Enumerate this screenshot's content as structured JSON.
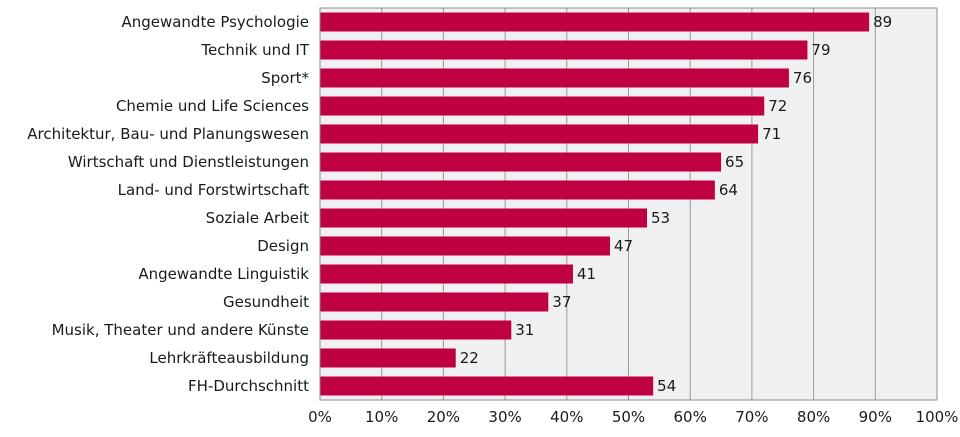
{
  "chart_data": {
    "type": "bar",
    "orientation": "horizontal",
    "categories": [
      "Angewandte Psychologie",
      "Technik und IT",
      "Sport*",
      "Chemie und Life Sciences",
      "Architektur, Bau- und Planungswesen",
      "Wirtschaft und Dienstleistungen",
      "Land- und Forstwirtschaft",
      "Soziale Arbeit",
      "Design",
      "Angewandte Linguistik",
      "Gesundheit",
      "Musik, Theater und andere Künste",
      "Lehrkräfteausbildung",
      "FH-Durchschnitt"
    ],
    "values": [
      89,
      79,
      76,
      72,
      71,
      65,
      64,
      53,
      47,
      41,
      37,
      31,
      22,
      54
    ],
    "value_labels": [
      "89",
      "79",
      "76",
      "72",
      "71",
      "65",
      "64",
      "53",
      "47",
      "41",
      "37",
      "31",
      "22",
      "54"
    ],
    "xlim": [
      0,
      100
    ],
    "x_ticks": [
      "0%",
      "10%",
      "20%",
      "30%",
      "40%",
      "50%",
      "60%",
      "70%",
      "80%",
      "90%",
      "100%"
    ],
    "grid": true,
    "colors": {
      "bar": "#BF0043",
      "plot_background": "#F0F0F0",
      "gridline": "#9A9A9A",
      "frame": "#8C8C8C"
    }
  }
}
